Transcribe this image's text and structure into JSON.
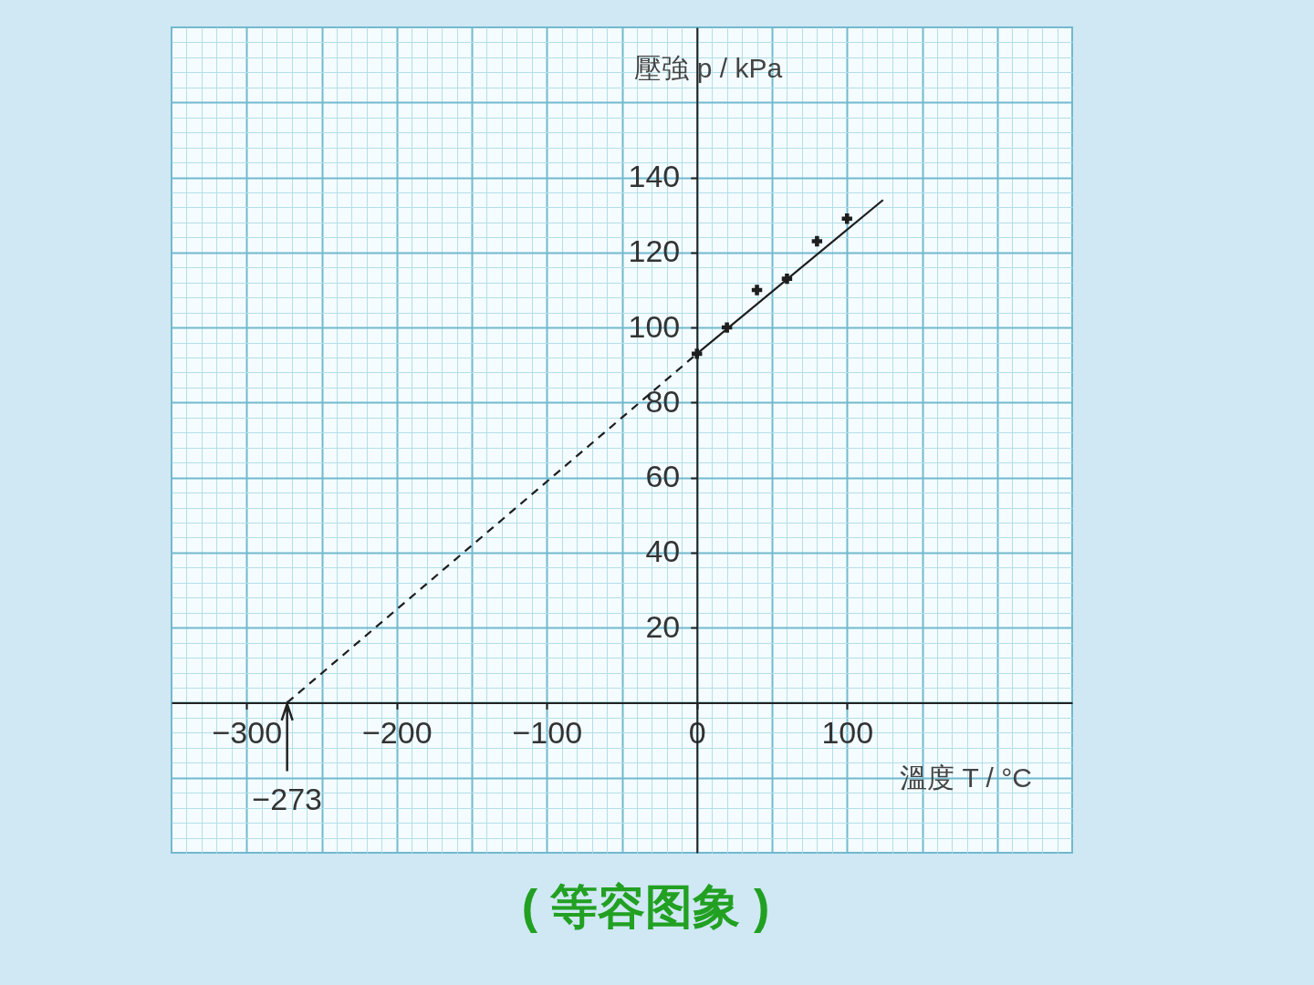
{
  "chart_data": {
    "type": "scatter",
    "title": "( 等容图象 )",
    "xlabel": "溫度 T / °C",
    "ylabel": "壓強 p / kPa",
    "xlim": [
      -350,
      250
    ],
    "ylim": [
      -40,
      180
    ],
    "xticks": [
      {
        "value": -340,
        "label": null
      },
      {
        "value": -330,
        "label": null
      },
      {
        "value": -320,
        "label": null
      },
      {
        "value": -310,
        "label": null
      },
      -300,
      {
        "value": -290,
        "label": null
      },
      {
        "value": -280,
        "label": null
      },
      {
        "value": -270,
        "label": null
      },
      {
        "value": -260,
        "label": null
      },
      {
        "value": -250,
        "label": null
      },
      {
        "value": -240,
        "label": null
      },
      {
        "value": -230,
        "label": null
      },
      {
        "value": -220,
        "label": null
      },
      {
        "value": -210,
        "label": null
      },
      -200,
      {
        "value": -190,
        "label": null
      },
      {
        "value": -180,
        "label": null
      },
      {
        "value": -170,
        "label": null
      },
      {
        "value": -160,
        "label": null
      },
      {
        "value": -150,
        "label": null
      },
      {
        "value": -140,
        "label": null
      },
      {
        "value": -130,
        "label": null
      },
      {
        "value": -120,
        "label": null
      },
      {
        "value": -110,
        "label": null
      },
      -100,
      {
        "value": -90,
        "label": null
      },
      {
        "value": -80,
        "label": null
      },
      {
        "value": -70,
        "label": null
      },
      {
        "value": -60,
        "label": null
      },
      {
        "value": -50,
        "label": null
      },
      {
        "value": -40,
        "label": null
      },
      {
        "value": -30,
        "label": null
      },
      {
        "value": -20,
        "label": null
      },
      {
        "value": -10,
        "label": null
      },
      0,
      {
        "value": 10,
        "label": null
      },
      {
        "value": 20,
        "label": null
      },
      {
        "value": 30,
        "label": null
      },
      {
        "value": 40,
        "label": null
      },
      {
        "value": 50,
        "label": null
      },
      {
        "value": 60,
        "label": null
      },
      {
        "value": 70,
        "label": null
      },
      {
        "value": 80,
        "label": null
      },
      {
        "value": 90,
        "label": null
      },
      100,
      {
        "value": 110,
        "label": null
      },
      {
        "value": 120,
        "label": null
      },
      {
        "value": 130,
        "label": null
      },
      {
        "value": 140,
        "label": null
      },
      {
        "value": 150,
        "label": null
      },
      {
        "value": 160,
        "label": null
      },
      {
        "value": 170,
        "label": null
      },
      {
        "value": 180,
        "label": null
      },
      {
        "value": 190,
        "label": null
      },
      {
        "value": 200,
        "label": null
      },
      {
        "value": 210,
        "label": null
      },
      {
        "value": 220,
        "label": null
      },
      {
        "value": 230,
        "label": null
      },
      {
        "value": 240,
        "label": null
      }
    ],
    "yticks": [
      {
        "value": -36,
        "label": null
      },
      {
        "value": -32,
        "label": null
      },
      {
        "value": -28,
        "label": null
      },
      {
        "value": -24,
        "label": null
      },
      {
        "value": -20,
        "label": null
      },
      {
        "value": -16,
        "label": null
      },
      {
        "value": -12,
        "label": null
      },
      {
        "value": -8,
        "label": null
      },
      {
        "value": -4,
        "label": null
      },
      {
        "value": 0,
        "label": null
      },
      {
        "value": 4,
        "label": null
      },
      {
        "value": 8,
        "label": null
      },
      {
        "value": 12,
        "label": null
      },
      {
        "value": 16,
        "label": null
      },
      20,
      {
        "value": 24,
        "label": null
      },
      {
        "value": 28,
        "label": null
      },
      {
        "value": 32,
        "label": null
      },
      {
        "value": 36,
        "label": null
      },
      40,
      {
        "value": 44,
        "label": null
      },
      {
        "value": 48,
        "label": null
      },
      {
        "value": 52,
        "label": null
      },
      {
        "value": 56,
        "label": null
      },
      60,
      {
        "value": 64,
        "label": null
      },
      {
        "value": 68,
        "label": null
      },
      {
        "value": 72,
        "label": null
      },
      {
        "value": 76,
        "label": null
      },
      80,
      {
        "value": 84,
        "label": null
      },
      {
        "value": 88,
        "label": null
      },
      {
        "value": 92,
        "label": null
      },
      {
        "value": 96,
        "label": null
      },
      100,
      {
        "value": 104,
        "label": null
      },
      {
        "value": 108,
        "label": null
      },
      {
        "value": 112,
        "label": null
      },
      {
        "value": 116,
        "label": null
      },
      120,
      {
        "value": 124,
        "label": null
      },
      {
        "value": 128,
        "label": null
      },
      {
        "value": 132,
        "label": null
      },
      {
        "value": 136,
        "label": null
      },
      140,
      {
        "value": 144,
        "label": null
      },
      {
        "value": 148,
        "label": null
      },
      {
        "value": 152,
        "label": null
      },
      {
        "value": 156,
        "label": null
      },
      {
        "value": 160,
        "label": null
      },
      {
        "value": 164,
        "label": null
      },
      {
        "value": 168,
        "label": null
      },
      {
        "value": 172,
        "label": null
      },
      {
        "value": 176,
        "label": null
      }
    ],
    "grid": true,
    "series": [
      {
        "marker": "cross",
        "color": "#1e1e1e",
        "x": [
          0,
          20,
          40,
          60,
          80,
          100
        ],
        "values": [
          93,
          100,
          110,
          113,
          123,
          129
        ]
      },
      {
        "type": "line",
        "line_style": "solid",
        "color": "#1e1e1e",
        "x": [
          0,
          124
        ],
        "values": [
          93,
          134
        ]
      },
      {
        "type": "line",
        "line_style": "dashed",
        "color": "#1e1e1e",
        "x": [
          -273,
          0
        ],
        "values": [
          0,
          93
        ]
      }
    ],
    "annotations": [
      {
        "text": "−273",
        "x": -273,
        "y": 0
      }
    ]
  }
}
